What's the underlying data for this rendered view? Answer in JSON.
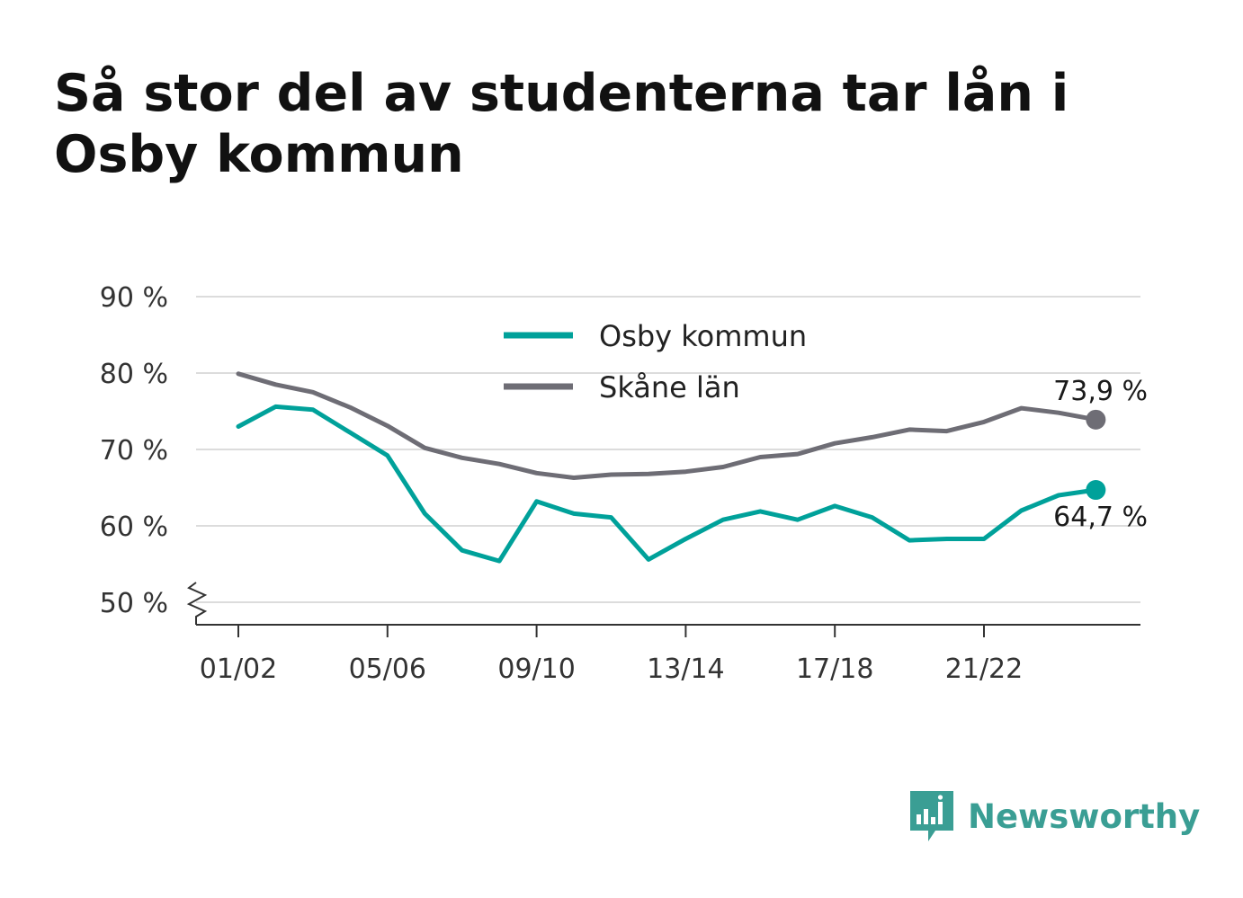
{
  "title": "Så stor del av studenterna tar lån i Osby kommun",
  "brand": {
    "name": "Newsworthy",
    "icon": "newsworthy-chart-icon",
    "color": "#3a9e94"
  },
  "chart_data": {
    "type": "line",
    "title": "Så stor del av studenterna tar lån i Osby kommun",
    "xlabel": "",
    "ylabel": "",
    "ylim": [
      50,
      90
    ],
    "y_ticks": [
      50,
      60,
      70,
      80,
      90
    ],
    "y_tick_labels": [
      "50 %",
      "60 %",
      "70 %",
      "80 %",
      "90 %"
    ],
    "y_axis_break": true,
    "grid": true,
    "legend_position": "top-center",
    "categories": [
      "01/02",
      "02/03",
      "03/04",
      "04/05",
      "05/06",
      "06/07",
      "07/08",
      "08/09",
      "09/10",
      "10/11",
      "11/12",
      "12/13",
      "13/14",
      "14/15",
      "15/16",
      "16/17",
      "17/18",
      "18/19",
      "19/20",
      "20/21",
      "21/22",
      "22/23",
      "23/24",
      "24/25"
    ],
    "x_tick_labels": [
      "01/02",
      "05/06",
      "09/10",
      "13/14",
      "17/18",
      "21/22"
    ],
    "series": [
      {
        "name": "Osby kommun",
        "color": "#00a19a",
        "values": [
          73.0,
          75.6,
          75.2,
          72.2,
          69.2,
          61.6,
          56.8,
          55.4,
          63.2,
          61.6,
          61.1,
          55.6,
          58.3,
          60.8,
          61.9,
          60.8,
          62.6,
          61.1,
          58.1,
          58.3,
          58.3,
          62.0,
          64.0,
          64.7
        ],
        "end_label": "64,7 %"
      },
      {
        "name": "Skåne län",
        "color": "#6e6d75",
        "values": [
          79.9,
          78.5,
          77.5,
          75.5,
          73.1,
          70.2,
          68.9,
          68.1,
          66.9,
          66.3,
          66.7,
          66.8,
          67.1,
          67.7,
          69.0,
          69.4,
          70.8,
          71.6,
          72.6,
          72.4,
          73.6,
          75.4,
          74.8,
          73.9
        ],
        "end_label": "73,9 %"
      }
    ]
  }
}
